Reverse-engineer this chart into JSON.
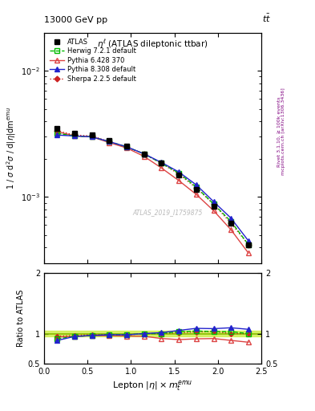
{
  "title_top": "13000 GeV pp",
  "title_right": "tt",
  "plot_title": "ηˡ (ATLAS dileptonic ttbar)",
  "watermark": "ATLAS_2019_I1759875",
  "right_label1": "Rivet 3.1.10, ≥ 100k events",
  "right_label2": "mcplots.cern.ch [arXiv:1306.3436]",
  "x_data": [
    0.15,
    0.35,
    0.55,
    0.75,
    0.95,
    1.15,
    1.35,
    1.55,
    1.75,
    1.95,
    2.15,
    2.35
  ],
  "atlas_y": [
    0.0035,
    0.0032,
    0.0031,
    0.0028,
    0.00255,
    0.0022,
    0.00185,
    0.0015,
    0.00115,
    0.00085,
    0.00062,
    0.00042
  ],
  "herwig_y": [
    0.0032,
    0.00305,
    0.003,
    0.00275,
    0.0025,
    0.0022,
    0.00185,
    0.00155,
    0.0012,
    0.00088,
    0.00064,
    0.00042
  ],
  "pythia6_y": [
    0.0033,
    0.00305,
    0.003,
    0.0027,
    0.00245,
    0.0021,
    0.0017,
    0.00135,
    0.00105,
    0.00078,
    0.00055,
    0.00036
  ],
  "pythia8_y": [
    0.0031,
    0.00305,
    0.003,
    0.00275,
    0.0025,
    0.0022,
    0.00188,
    0.00158,
    0.00125,
    0.00092,
    0.00068,
    0.00045
  ],
  "sherpa_y": [
    0.00335,
    0.0031,
    0.00305,
    0.00275,
    0.0025,
    0.0022,
    0.00185,
    0.00152,
    0.00118,
    0.00088,
    0.00062,
    0.00042
  ],
  "ratio_herwig": [
    0.914,
    0.953,
    0.968,
    0.982,
    0.98,
    1.0,
    1.0,
    1.033,
    1.043,
    1.035,
    1.032,
    1.0
  ],
  "ratio_pythia6": [
    0.943,
    0.953,
    0.968,
    0.964,
    0.96,
    0.955,
    0.919,
    0.9,
    0.913,
    0.918,
    0.887,
    0.857
  ],
  "ratio_pythia8": [
    0.886,
    0.953,
    0.968,
    0.982,
    0.98,
    1.0,
    1.016,
    1.053,
    1.087,
    1.082,
    1.097,
    1.071
  ],
  "ratio_sherpa": [
    0.957,
    0.969,
    0.984,
    0.982,
    0.98,
    1.0,
    1.0,
    1.013,
    1.026,
    1.035,
    1.0,
    1.0
  ],
  "ylim_main": [
    0.0003,
    0.02
  ],
  "ylim_ratio": [
    0.5,
    2.0
  ],
  "xlim": [
    0.0,
    2.5
  ]
}
